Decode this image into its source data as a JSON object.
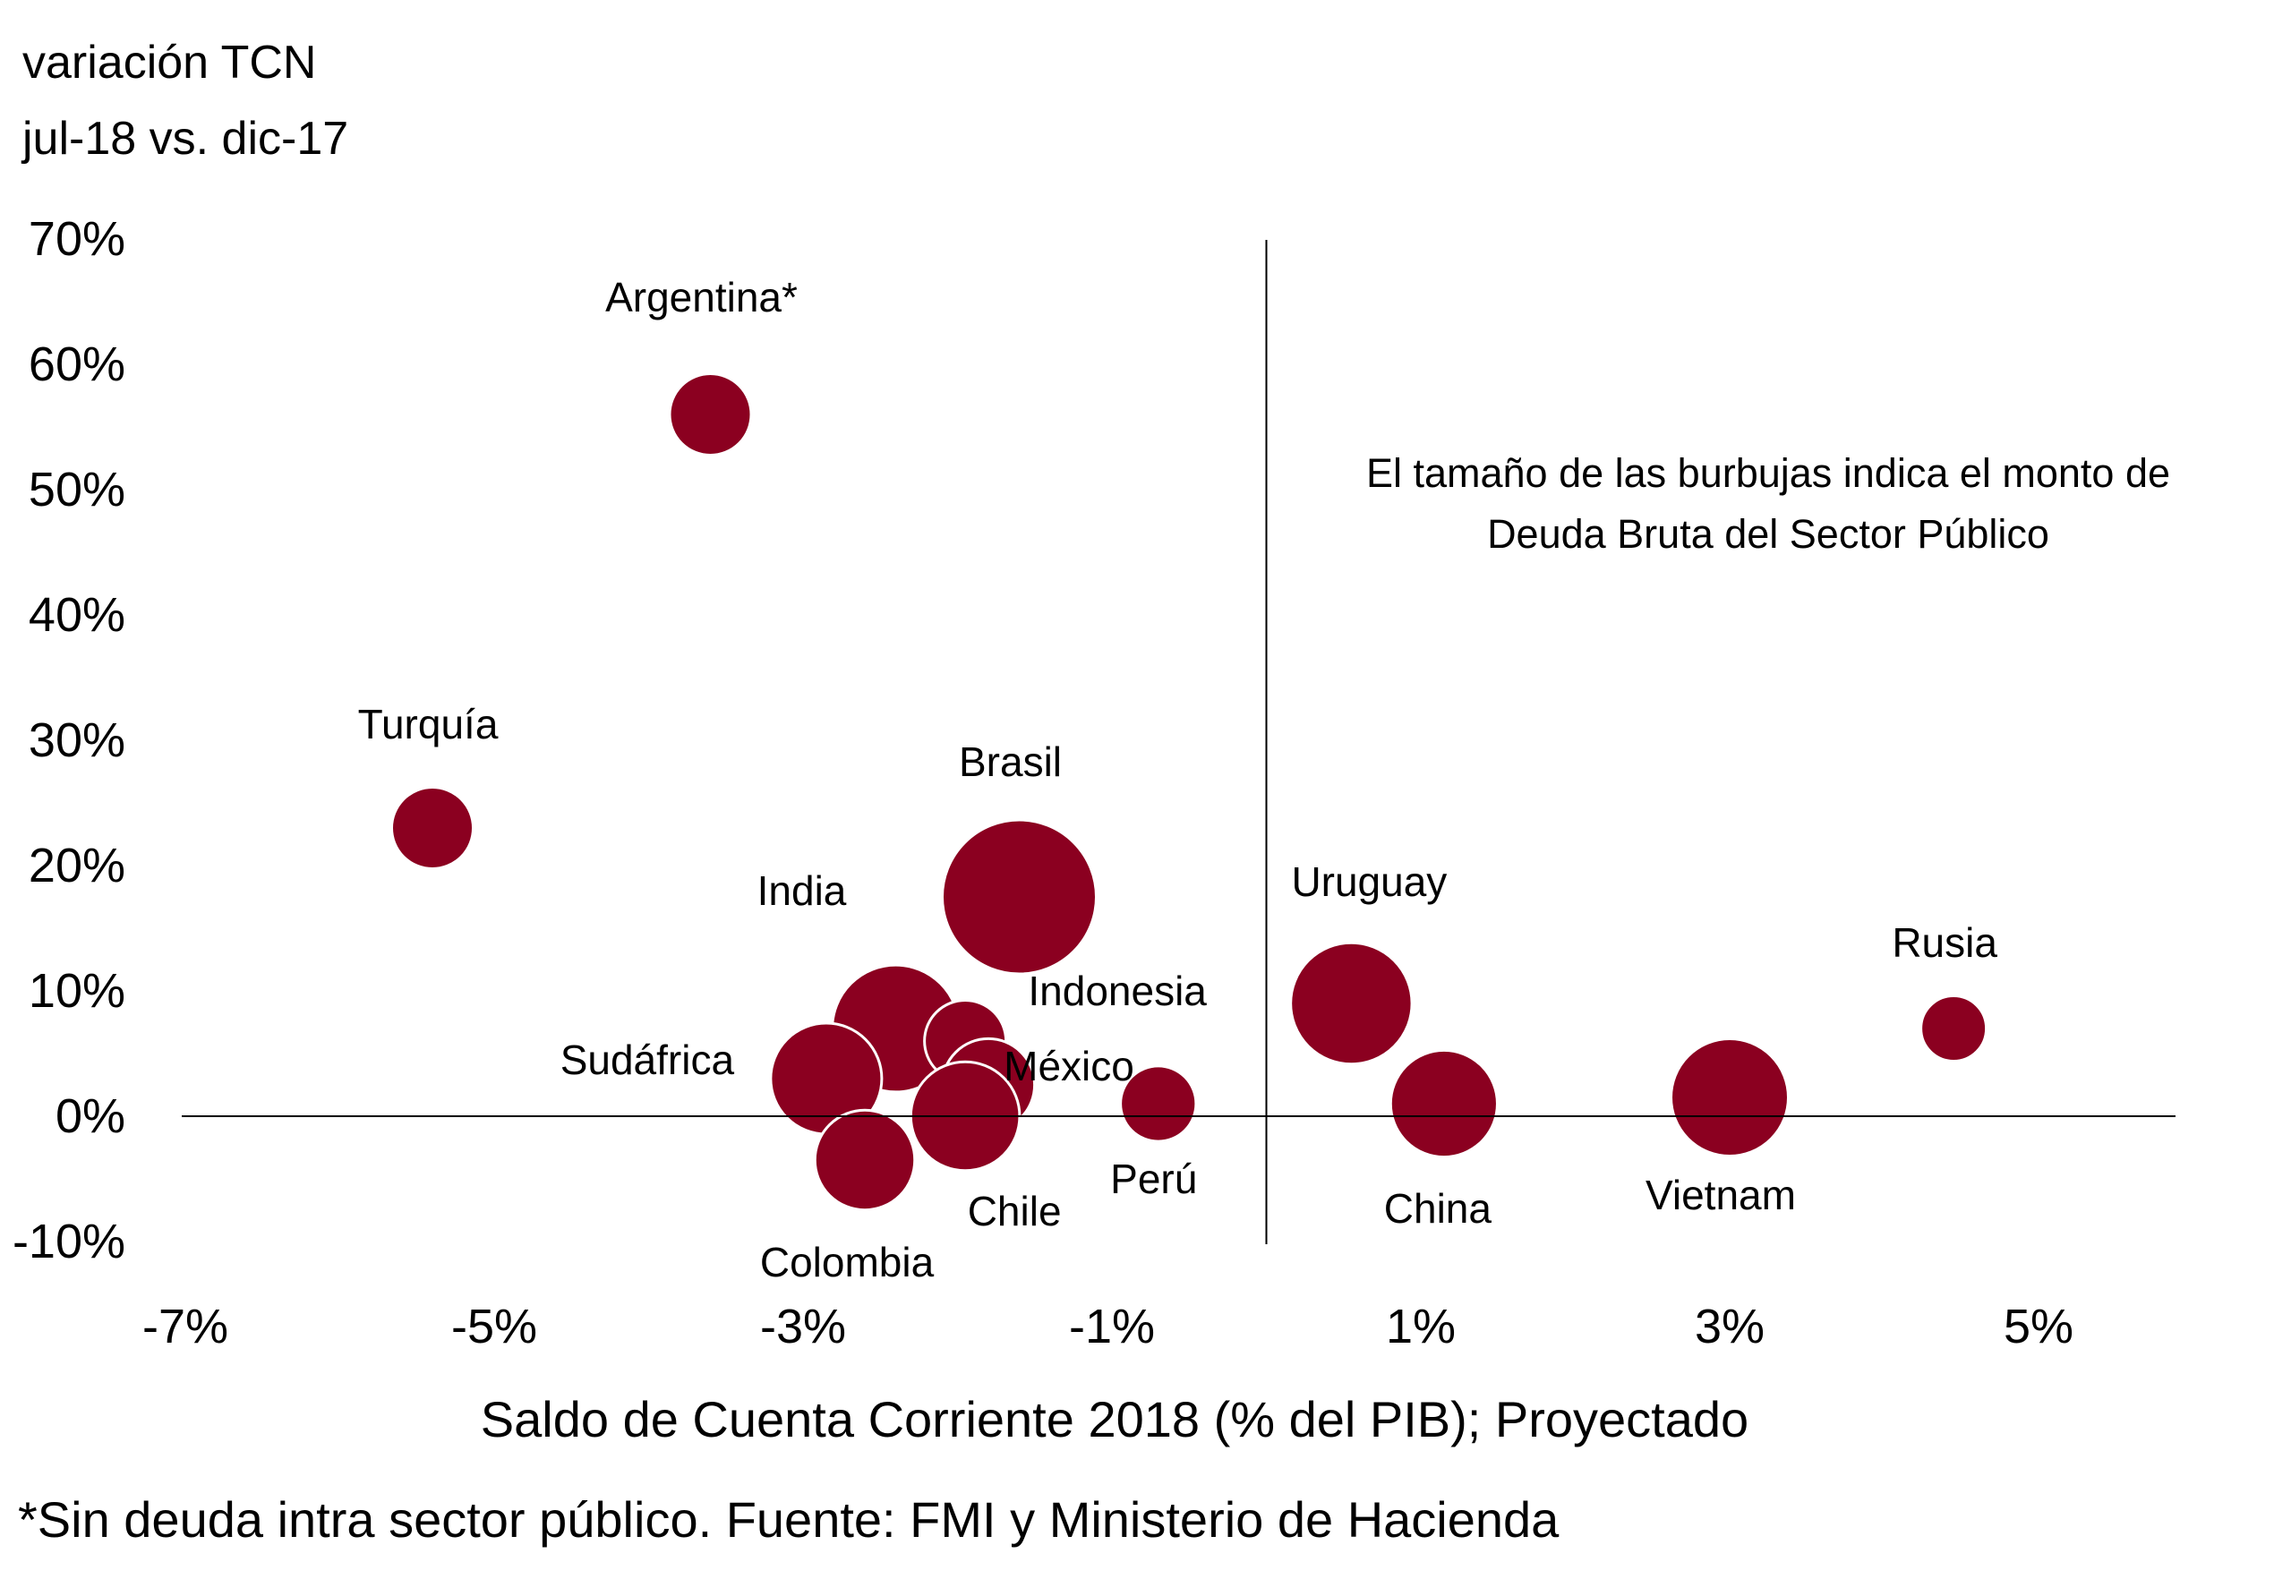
{
  "y_axis_title_line1": "variación TCN",
  "y_axis_title_line2": "jul-18 vs. dic-17",
  "bubble_note": "El tamaño de las burbujas indica el monto de Deuda Bruta del Sector Público",
  "footnote": "*Sin deuda intra sector público. Fuente: FMI y Ministerio de Hacienda",
  "colors": {
    "bubble": "#8b0020",
    "bubble_stroke": "#ffffff",
    "axis": "#000000"
  },
  "chart_data": {
    "type": "scatter",
    "subtype": "bubble",
    "xlabel": "Saldo de Cuenta Corriente 2018 (% del PIB); Proyectado",
    "ylabel": "variación TCN jul-18 vs. dic-17",
    "xlim": [
      -7,
      6
    ],
    "ylim": [
      -10,
      70
    ],
    "xticks": [
      -7,
      -5,
      -3,
      -1,
      1,
      3,
      5
    ],
    "xtick_labels": [
      "-7%",
      "-5%",
      "-3%",
      "-1%",
      "1%",
      "3%",
      "5%"
    ],
    "yticks": [
      70,
      60,
      50,
      40,
      30,
      20,
      10,
      0,
      -10
    ],
    "ytick_labels": [
      "70%",
      "60%",
      "50%",
      "40%",
      "30%",
      "20%",
      "10%",
      "0%",
      "-10%"
    ],
    "grid": false,
    "size_encoding": "Deuda Bruta del Sector Público",
    "points": [
      {
        "name": "Argentina*",
        "x": -3.6,
        "y": 56.0,
        "size": 28
      },
      {
        "name": "Turquía",
        "x": -5.4,
        "y": 23.0,
        "size": 28
      },
      {
        "name": "Brasil",
        "x": -1.6,
        "y": 17.5,
        "size": 100
      },
      {
        "name": "India",
        "x": -2.4,
        "y": 7.0,
        "size": 68
      },
      {
        "name": "Indonesia",
        "x": -1.95,
        "y": 6.0,
        "size": 28
      },
      {
        "name": "México",
        "x": -1.8,
        "y": 2.5,
        "size": 36
      },
      {
        "name": "Sudáfrica",
        "x": -2.85,
        "y": 3.0,
        "size": 52
      },
      {
        "name": "Chile",
        "x": -1.95,
        "y": 0.0,
        "size": 50
      },
      {
        "name": "Colombia",
        "x": -2.6,
        "y": -3.5,
        "size": 42
      },
      {
        "name": "Perú",
        "x": -0.7,
        "y": 1.0,
        "size": 24
      },
      {
        "name": "Uruguay",
        "x": 0.55,
        "y": 9.0,
        "size": 62
      },
      {
        "name": "China",
        "x": 1.15,
        "y": 1.0,
        "size": 48
      },
      {
        "name": "Vietnam",
        "x": 3.0,
        "y": 1.5,
        "size": 58
      },
      {
        "name": "Rusia",
        "x": 4.45,
        "y": 7.0,
        "size": 18
      }
    ]
  }
}
